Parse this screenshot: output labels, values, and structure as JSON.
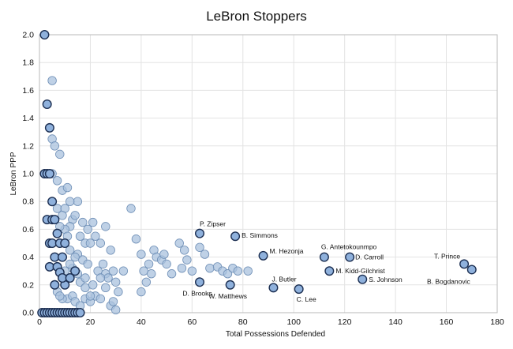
{
  "chart_data": {
    "type": "scatter",
    "title": "LeBron Stoppers",
    "xlabel": "Total Possessions Defended",
    "ylabel": "LeBron PPP",
    "xlim": [
      0,
      180
    ],
    "ylim": [
      0,
      2.0
    ],
    "x_ticks": [
      "0",
      "20",
      "40",
      "60",
      "80",
      "100",
      "120",
      "140",
      "160",
      "180"
    ],
    "y_ticks": [
      "0.0",
      "0.2",
      "0.4",
      "0.6",
      "0.8",
      "1.0",
      "1.2",
      "1.4",
      "1.6",
      "1.8",
      "2.0"
    ],
    "grid": true,
    "labeled_points": [
      {
        "label": "P. Zipser",
        "x": 63,
        "y": 0.57
      },
      {
        "label": "B. Simmons",
        "x": 77,
        "y": 0.55
      },
      {
        "label": "M. Hezonja",
        "x": 88,
        "y": 0.41
      },
      {
        "label": "G. Antetokounmpo",
        "x": 112,
        "y": 0.4
      },
      {
        "label": "D. Carroll",
        "x": 122,
        "y": 0.4
      },
      {
        "label": "M. Kidd-Gilchrist",
        "x": 114,
        "y": 0.3
      },
      {
        "label": "S. Johnson",
        "x": 127,
        "y": 0.24
      },
      {
        "label": "T. Prince",
        "x": 167,
        "y": 0.35
      },
      {
        "label": "B. Bogdanovic",
        "x": 170,
        "y": 0.31
      },
      {
        "label": "D. Brooks",
        "x": 63,
        "y": 0.22
      },
      {
        "label": "W. Matthews",
        "x": 75,
        "y": 0.2
      },
      {
        "label": "J. Butler",
        "x": 92,
        "y": 0.18
      },
      {
        "label": "C. Lee",
        "x": 102,
        "y": 0.17
      }
    ],
    "highlighted_points": [
      [
        2,
        2.0
      ],
      [
        3,
        1.5
      ],
      [
        4,
        1.33
      ],
      [
        2,
        1.0
      ],
      [
        3,
        1.0
      ],
      [
        4,
        1.0
      ],
      [
        3,
        0.67
      ],
      [
        5,
        0.67
      ],
      [
        6,
        0.67
      ],
      [
        5,
        0.8
      ],
      [
        7,
        0.57
      ],
      [
        4,
        0.5
      ],
      [
        5,
        0.5
      ],
      [
        6,
        0.4
      ],
      [
        8,
        0.5
      ],
      [
        9,
        0.4
      ],
      [
        10,
        0.5
      ],
      [
        4,
        0.33
      ],
      [
        7,
        0.33
      ],
      [
        8,
        0.29
      ],
      [
        10,
        0.2
      ],
      [
        9,
        0.25
      ],
      [
        12,
        0.25
      ],
      [
        14,
        0.3
      ],
      [
        6,
        0.2
      ],
      [
        1,
        0.0
      ],
      [
        2,
        0.0
      ],
      [
        3,
        0.0
      ],
      [
        4,
        0.0
      ],
      [
        5,
        0.0
      ],
      [
        6,
        0.0
      ],
      [
        7,
        0.0
      ],
      [
        8,
        0.0
      ],
      [
        9,
        0.0
      ],
      [
        10,
        0.0
      ],
      [
        11,
        0.0
      ],
      [
        12,
        0.0
      ],
      [
        13,
        0.0
      ],
      [
        14,
        0.0
      ],
      [
        15,
        0.0
      ],
      [
        16,
        0.0
      ]
    ],
    "other_points": [
      [
        5,
        1.67
      ],
      [
        5,
        1.25
      ],
      [
        6,
        1.2
      ],
      [
        8,
        1.14
      ],
      [
        5,
        1.0
      ],
      [
        7,
        0.95
      ],
      [
        9,
        0.88
      ],
      [
        11,
        0.9
      ],
      [
        7,
        0.75
      ],
      [
        10,
        0.75
      ],
      [
        9,
        0.7
      ],
      [
        13,
        0.67
      ],
      [
        12,
        0.62
      ],
      [
        14,
        0.7
      ],
      [
        15,
        0.8
      ],
      [
        17,
        0.65
      ],
      [
        19,
        0.6
      ],
      [
        21,
        0.65
      ],
      [
        22,
        0.55
      ],
      [
        24,
        0.5
      ],
      [
        26,
        0.62
      ],
      [
        28,
        0.45
      ],
      [
        16,
        0.55
      ],
      [
        18,
        0.5
      ],
      [
        20,
        0.5
      ],
      [
        12,
        0.45
      ],
      [
        15,
        0.42
      ],
      [
        17,
        0.38
      ],
      [
        19,
        0.35
      ],
      [
        13,
        0.32
      ],
      [
        15,
        0.28
      ],
      [
        16,
        0.22
      ],
      [
        18,
        0.18
      ],
      [
        21,
        0.2
      ],
      [
        23,
        0.3
      ],
      [
        25,
        0.35
      ],
      [
        26,
        0.28
      ],
      [
        27,
        0.25
      ],
      [
        29,
        0.3
      ],
      [
        30,
        0.22
      ],
      [
        31,
        0.15
      ],
      [
        33,
        0.3
      ],
      [
        36,
        0.75
      ],
      [
        38,
        0.53
      ],
      [
        40,
        0.42
      ],
      [
        41,
        0.3
      ],
      [
        42,
        0.22
      ],
      [
        40,
        0.15
      ],
      [
        43,
        0.35
      ],
      [
        44,
        0.28
      ],
      [
        45,
        0.45
      ],
      [
        46,
        0.4
      ],
      [
        48,
        0.38
      ],
      [
        49,
        0.42
      ],
      [
        50,
        0.35
      ],
      [
        52,
        0.28
      ],
      [
        55,
        0.5
      ],
      [
        56,
        0.32
      ],
      [
        57,
        0.45
      ],
      [
        58,
        0.38
      ],
      [
        60,
        0.3
      ],
      [
        63,
        0.47
      ],
      [
        65,
        0.42
      ],
      [
        67,
        0.32
      ],
      [
        70,
        0.33
      ],
      [
        72,
        0.3
      ],
      [
        74,
        0.28
      ],
      [
        76,
        0.32
      ],
      [
        78,
        0.3
      ],
      [
        82,
        0.3
      ],
      [
        11,
        0.1
      ],
      [
        13,
        0.12
      ],
      [
        14,
        0.08
      ],
      [
        16,
        0.05
      ],
      [
        18,
        0.1
      ],
      [
        20,
        0.08
      ],
      [
        22,
        0.12
      ],
      [
        24,
        0.1
      ],
      [
        28,
        0.05
      ],
      [
        29,
        0.08
      ],
      [
        30,
        0.02
      ],
      [
        9,
        0.1
      ],
      [
        7,
        0.15
      ],
      [
        8,
        0.12
      ],
      [
        10,
        0.6
      ],
      [
        11,
        0.55
      ],
      [
        12,
        0.35
      ],
      [
        14,
        0.4
      ],
      [
        18,
        0.25
      ],
      [
        20,
        0.12
      ],
      [
        24,
        0.25
      ],
      [
        26,
        0.18
      ],
      [
        12,
        0.8
      ],
      [
        8,
        0.62
      ],
      [
        10,
        0.3
      ]
    ]
  }
}
